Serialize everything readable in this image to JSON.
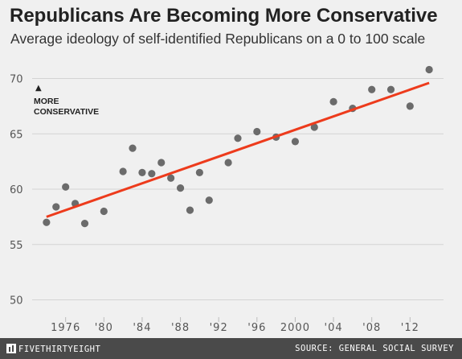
{
  "title": "Republicans Are Becoming More Conservative",
  "subtitle": "Average ideology of self-identified Republicans on a 0 to 100 scale",
  "annotation": {
    "arrow": "▲",
    "line1": "MORE",
    "line2": "CONSERVATIVE"
  },
  "footer": {
    "brand": "FIVETHIRTYEIGHT",
    "source": "SOURCE: GENERAL SOCIAL SURVEY"
  },
  "colors": {
    "background": "#f0f0f0",
    "points": "#6b6b6b",
    "trend": "#ed3b1c",
    "grid": "#d4d4d4",
    "footer": "#4a4a4a"
  },
  "chart_data": {
    "type": "scatter",
    "title": "Republicans Are Becoming More Conservative",
    "subtitle": "Average ideology of self-identified Republicans on a 0 to 100 scale",
    "xlabel": "",
    "ylabel": "",
    "xlim": [
      1972.5,
      2015.5
    ],
    "ylim": [
      48,
      72
    ],
    "grid": true,
    "y_ticks": [
      50,
      55,
      60,
      65,
      70
    ],
    "x_ticks": [
      {
        "value": 1976,
        "label": "1976"
      },
      {
        "value": 1980,
        "label": "'80"
      },
      {
        "value": 1984,
        "label": "'84"
      },
      {
        "value": 1988,
        "label": "'88"
      },
      {
        "value": 1992,
        "label": "'92"
      },
      {
        "value": 1996,
        "label": "'96"
      },
      {
        "value": 2000,
        "label": "2000"
      },
      {
        "value": 2004,
        "label": "'04"
      },
      {
        "value": 2008,
        "label": "'08"
      },
      {
        "value": 2012,
        "label": "'12"
      }
    ],
    "points": [
      {
        "x": 1974,
        "y": 57.0
      },
      {
        "x": 1975,
        "y": 58.4
      },
      {
        "x": 1976,
        "y": 60.2
      },
      {
        "x": 1977,
        "y": 58.7
      },
      {
        "x": 1978,
        "y": 56.9
      },
      {
        "x": 1980,
        "y": 58.0
      },
      {
        "x": 1982,
        "y": 61.6
      },
      {
        "x": 1983,
        "y": 63.7
      },
      {
        "x": 1984,
        "y": 61.5
      },
      {
        "x": 1985,
        "y": 61.4
      },
      {
        "x": 1986,
        "y": 62.4
      },
      {
        "x": 1987,
        "y": 61.0
      },
      {
        "x": 1988,
        "y": 60.1
      },
      {
        "x": 1989,
        "y": 58.1
      },
      {
        "x": 1990,
        "y": 61.5
      },
      {
        "x": 1991,
        "y": 59.0
      },
      {
        "x": 1993,
        "y": 62.4
      },
      {
        "x": 1994,
        "y": 64.6
      },
      {
        "x": 1996,
        "y": 65.2
      },
      {
        "x": 1998,
        "y": 64.7
      },
      {
        "x": 2000,
        "y": 64.3
      },
      {
        "x": 2002,
        "y": 65.6
      },
      {
        "x": 2004,
        "y": 67.9
      },
      {
        "x": 2006,
        "y": 67.3
      },
      {
        "x": 2008,
        "y": 69.0
      },
      {
        "x": 2010,
        "y": 69.0
      },
      {
        "x": 2012,
        "y": 67.5
      },
      {
        "x": 2014,
        "y": 70.8
      }
    ],
    "trend_line": {
      "start": {
        "x": 1974,
        "y": 57.5
      },
      "end": {
        "x": 2014,
        "y": 69.6
      }
    }
  }
}
